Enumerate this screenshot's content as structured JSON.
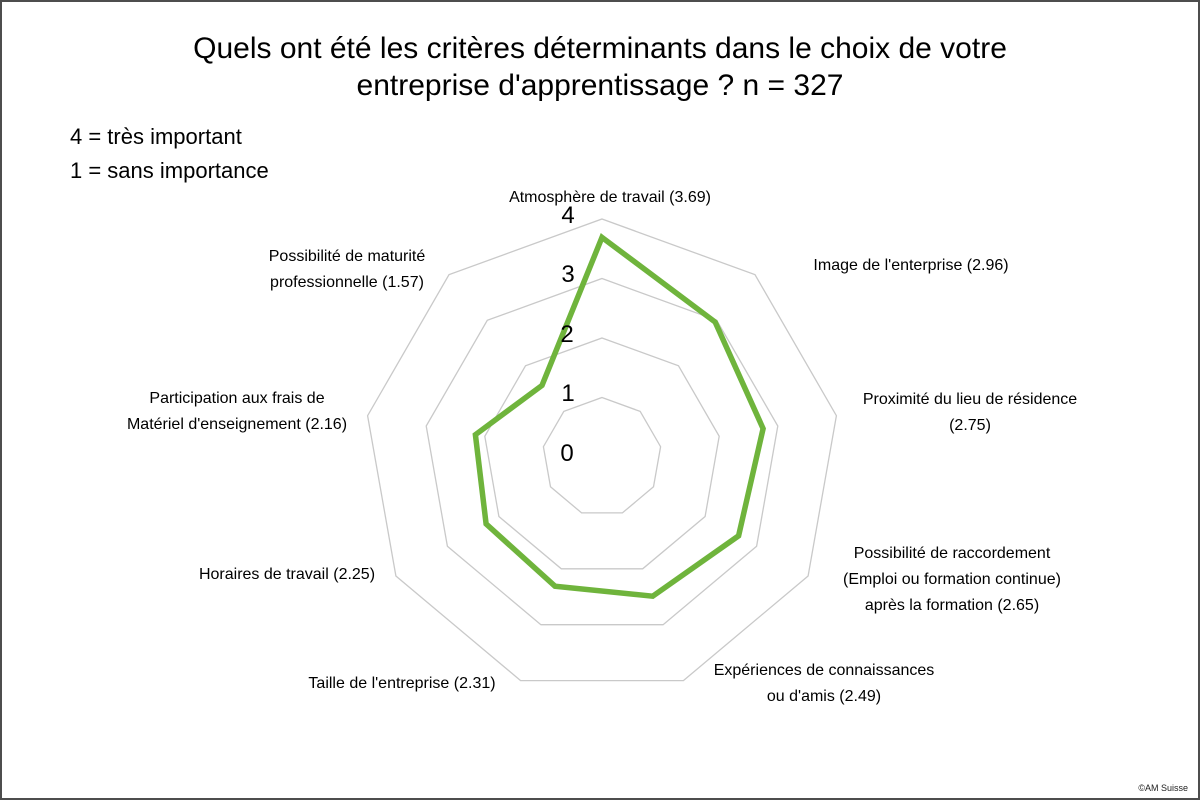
{
  "header": {
    "title": "Quels ont été les critères déterminants dans le choix de votre\nentreprise d'apprentissage ? n = 327"
  },
  "legend": {
    "line1": "4 = très important",
    "line2": "1 = sans importance"
  },
  "chart_data": {
    "type": "radar",
    "title": "Quels ont été les critères déterminants dans le choix de votre entreprise d'apprentissage ? n = 327",
    "n": 327,
    "scale_min": 0,
    "scale_max": 4,
    "scale_step": 1,
    "scale_note_max": "4 = très important",
    "scale_note_min": "1 = sans importance",
    "ticks": [
      "0",
      "1",
      "2",
      "3",
      "4"
    ],
    "categories": [
      "Atmosphère de travail (3.69)",
      "Image de l'enterprise (2.96)",
      "Proximité du lieu de résidence\n(2.75)",
      "Possibilité de raccordement\n(Emploi ou formation continue)\naprès la formation (2.65)",
      "Expériences de connaissances\nou d'amis (2.49)",
      "Taille de l'entreprise (2.31)",
      "Horaires de travail (2.25)",
      "Participation aux frais de\nMatériel d'enseignement (2.16)",
      "Possibilité de maturité\nprofessionnelle (1.57)"
    ],
    "values": [
      3.69,
      2.96,
      2.75,
      2.65,
      2.49,
      2.31,
      2.25,
      2.16,
      1.57
    ],
    "line_color": "#6fb43c",
    "grid_color": "#c9c9c9",
    "legend_position": "none",
    "grid": "polygon-rings"
  },
  "footer": {
    "copyright": "©AM Suisse"
  }
}
